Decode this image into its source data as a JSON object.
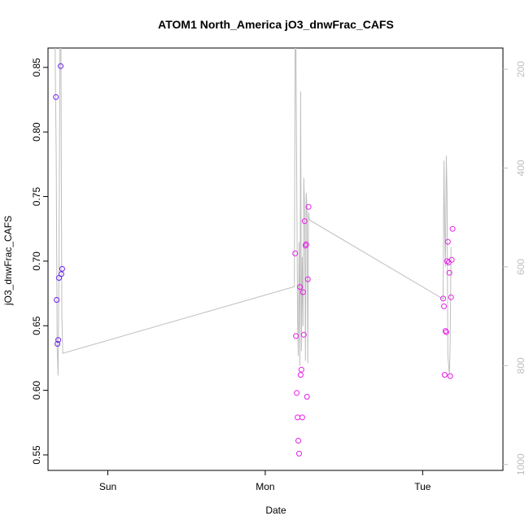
{
  "chart_data": {
    "type": "scatter",
    "title": "ATOM1 North_America jO3_dnwFrac_CAFS",
    "xlabel": "Date",
    "ylabel": "jO3_dnwFrac_CAFS",
    "x_ticks": [
      "Sun",
      "Mon",
      "Tue"
    ],
    "x_tick_positions_days": [
      0.5,
      1.5,
      2.5
    ],
    "xlim_days": [
      0.12,
      3.01
    ],
    "ylim": [
      0.538,
      0.865
    ],
    "y_ticks": [
      0.55,
      0.6,
      0.65,
      0.7,
      0.75,
      0.8,
      0.85
    ],
    "y_tick_labels": [
      "0.55",
      "0.60",
      "0.65",
      "0.70",
      "0.75",
      "0.80",
      "0.85"
    ],
    "y2_ticks": [
      200,
      400,
      600,
      800,
      1000
    ],
    "y2_tick_labels": [
      "200",
      "400",
      "600",
      "800",
      "1000"
    ],
    "y2lim": [
      1012,
      157
    ],
    "grid": false,
    "colors": {
      "line": "#bebebe",
      "points_early": "#6a1ee8",
      "points_late": "#e61ee6",
      "axis": "#000000",
      "right_axis": "#bfbfbf"
    },
    "points": [
      {
        "x": 0.17,
        "y": 0.827
      },
      {
        "x": 0.175,
        "y": 0.67
      },
      {
        "x": 0.18,
        "y": 0.636
      },
      {
        "x": 0.185,
        "y": 0.639
      },
      {
        "x": 0.19,
        "y": 0.687
      },
      {
        "x": 0.2,
        "y": 0.851
      },
      {
        "x": 0.205,
        "y": 0.69
      },
      {
        "x": 0.21,
        "y": 0.694
      },
      {
        "x": 1.69,
        "y": 0.706
      },
      {
        "x": 1.695,
        "y": 0.642
      },
      {
        "x": 1.7,
        "y": 0.598
      },
      {
        "x": 1.705,
        "y": 0.579
      },
      {
        "x": 1.71,
        "y": 0.561
      },
      {
        "x": 1.715,
        "y": 0.551
      },
      {
        "x": 1.72,
        "y": 0.68
      },
      {
        "x": 1.725,
        "y": 0.612
      },
      {
        "x": 1.73,
        "y": 0.616
      },
      {
        "x": 1.735,
        "y": 0.579
      },
      {
        "x": 1.74,
        "y": 0.676
      },
      {
        "x": 1.745,
        "y": 0.643
      },
      {
        "x": 1.75,
        "y": 0.731
      },
      {
        "x": 1.755,
        "y": 0.712
      },
      {
        "x": 1.76,
        "y": 0.713
      },
      {
        "x": 1.765,
        "y": 0.595
      },
      {
        "x": 1.77,
        "y": 0.686
      },
      {
        "x": 1.775,
        "y": 0.742
      },
      {
        "x": 2.63,
        "y": 0.671
      },
      {
        "x": 2.635,
        "y": 0.665
      },
      {
        "x": 2.64,
        "y": 0.612
      },
      {
        "x": 2.645,
        "y": 0.646
      },
      {
        "x": 2.65,
        "y": 0.645
      },
      {
        "x": 2.655,
        "y": 0.7
      },
      {
        "x": 2.66,
        "y": 0.715
      },
      {
        "x": 2.665,
        "y": 0.699
      },
      {
        "x": 2.67,
        "y": 0.691
      },
      {
        "x": 2.675,
        "y": 0.611
      },
      {
        "x": 2.68,
        "y": 0.672
      },
      {
        "x": 2.685,
        "y": 0.701
      },
      {
        "x": 2.69,
        "y": 0.725
      }
    ],
    "line_series_y2": [
      {
        "x": 0.165,
        "y2": 157
      },
      {
        "x": 0.172,
        "y2": 380
      },
      {
        "x": 0.178,
        "y2": 760
      },
      {
        "x": 0.184,
        "y2": 820
      },
      {
        "x": 0.19,
        "y2": 590
      },
      {
        "x": 0.196,
        "y2": 157
      },
      {
        "x": 0.202,
        "y2": 157
      },
      {
        "x": 0.208,
        "y2": 700
      },
      {
        "x": 0.214,
        "y2": 775
      },
      {
        "x": 1.685,
        "y2": 640
      },
      {
        "x": 1.69,
        "y2": 157
      },
      {
        "x": 1.695,
        "y2": 157
      },
      {
        "x": 1.7,
        "y2": 420
      },
      {
        "x": 1.705,
        "y2": 700
      },
      {
        "x": 1.71,
        "y2": 780
      },
      {
        "x": 1.715,
        "y2": 550
      },
      {
        "x": 1.72,
        "y2": 800
      },
      {
        "x": 1.725,
        "y2": 245
      },
      {
        "x": 1.73,
        "y2": 770
      },
      {
        "x": 1.735,
        "y2": 580
      },
      {
        "x": 1.74,
        "y2": 720
      },
      {
        "x": 1.745,
        "y2": 420
      },
      {
        "x": 1.75,
        "y2": 490
      },
      {
        "x": 1.755,
        "y2": 790
      },
      {
        "x": 1.76,
        "y2": 450
      },
      {
        "x": 1.765,
        "y2": 480
      },
      {
        "x": 1.77,
        "y2": 795
      },
      {
        "x": 1.775,
        "y2": 490
      },
      {
        "x": 1.78,
        "y2": 505
      },
      {
        "x": 2.63,
        "y2": 665
      },
      {
        "x": 2.635,
        "y2": 385
      },
      {
        "x": 2.64,
        "y2": 520
      },
      {
        "x": 2.645,
        "y2": 600
      },
      {
        "x": 2.65,
        "y2": 375
      },
      {
        "x": 2.655,
        "y2": 450
      },
      {
        "x": 2.66,
        "y2": 780
      },
      {
        "x": 2.665,
        "y2": 800
      },
      {
        "x": 2.67,
        "y2": 818
      },
      {
        "x": 2.675,
        "y2": 750
      },
      {
        "x": 2.68,
        "y2": 560
      }
    ]
  }
}
